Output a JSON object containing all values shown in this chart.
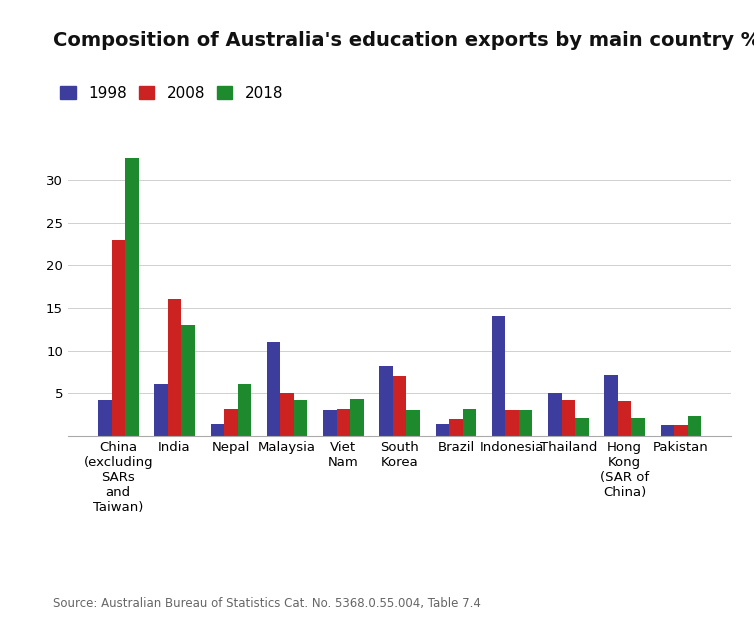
{
  "title": "Composition of Australia's education exports by main country %",
  "source": "Source: Australian Bureau of Statistics Cat. No. 5368.0.55.004, Table 7.4",
  "categories": [
    "China\n(excluding\nSARs\nand\nTaiwan)",
    "India",
    "Nepal",
    "Malaysia",
    "Viet\nNam",
    "South\nKorea",
    "Brazil",
    "Indonesia",
    "Thailand",
    "Hong\nKong\n(SAR of\nChina)",
    "Pakistan"
  ],
  "years": [
    "1998",
    "2008",
    "2018"
  ],
  "colors": [
    "#3d3d9e",
    "#cc2222",
    "#1e8a2e"
  ],
  "values_1998": [
    4.2,
    6.1,
    1.4,
    11.0,
    3.0,
    8.2,
    1.4,
    14.0,
    5.1,
    7.1,
    1.3
  ],
  "values_2008": [
    23.0,
    16.0,
    3.2,
    5.1,
    3.2,
    7.0,
    2.0,
    3.1,
    4.2,
    4.1,
    1.3
  ],
  "values_2018": [
    32.5,
    13.0,
    6.1,
    4.2,
    4.3,
    3.1,
    3.2,
    3.1,
    2.1,
    2.1,
    2.3
  ],
  "ylim": [
    0,
    35
  ],
  "yticks": [
    5,
    10,
    15,
    20,
    25,
    30
  ],
  "bar_width": 0.24,
  "background_color": "#ffffff",
  "title_fontsize": 14,
  "legend_fontsize": 11,
  "tick_fontsize": 9.5,
  "source_fontsize": 8.5
}
